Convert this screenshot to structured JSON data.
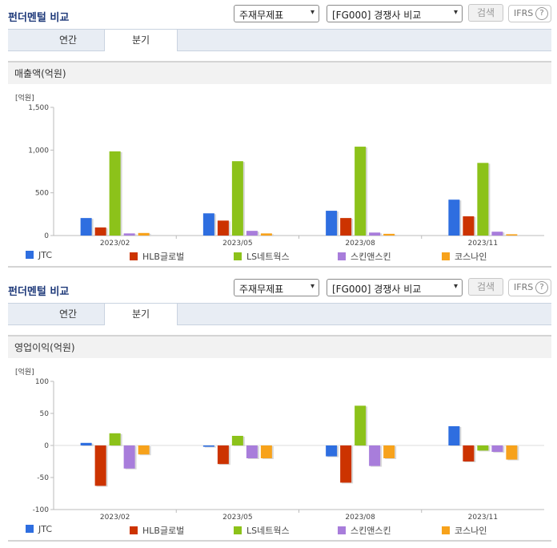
{
  "panels": [
    {
      "title": "펀더멘털 비교",
      "select_type": "주재무제표",
      "select_group": "[FG000] 경쟁사 비교",
      "search_label": "검색",
      "ifrs_label": "IFRS",
      "ifrs_help": "?",
      "tabs": [
        "연간",
        "분기"
      ],
      "active_tab": 1,
      "chart_title": "매출액(억원)",
      "unit_label": "[억원]"
    },
    {
      "title": "펀더멘털 비교",
      "select_type": "주재무제표",
      "select_group": "[FG000] 경쟁사 비교",
      "search_label": "검색",
      "ifrs_label": "IFRS",
      "ifrs_help": "?",
      "tabs": [
        "연간",
        "분기"
      ],
      "active_tab": 1,
      "chart_title": "영업이익(억원)",
      "unit_label": "[억원]"
    }
  ],
  "colors": {
    "JTC": "#2e6ee0",
    "HLB글로벌": "#cc3300",
    "LS네트웍스": "#8cc21a",
    "스킨앤스킨": "#a87ddb",
    "코스나인": "#f7a21b"
  },
  "chart_data": [
    {
      "type": "bar",
      "title": "매출액(억원)",
      "ylabel": "[억원]",
      "categories": [
        "2023/02",
        "2023/05",
        "2023/08",
        "2023/11"
      ],
      "ylim": [
        0,
        1500
      ],
      "yticks": [
        0,
        500,
        1000,
        1500
      ],
      "ytick_labels": [
        "0",
        "500",
        "1,000",
        "1,500"
      ],
      "series": [
        {
          "name": "JTC",
          "values": [
            205,
            260,
            290,
            420
          ]
        },
        {
          "name": "HLB글로벌",
          "values": [
            95,
            175,
            205,
            225
          ]
        },
        {
          "name": "LS네트웍스",
          "values": [
            985,
            870,
            1040,
            850
          ]
        },
        {
          "name": "스킨앤스킨",
          "values": [
            25,
            55,
            35,
            45
          ]
        },
        {
          "name": "코스나인",
          "values": [
            30,
            25,
            20,
            15
          ]
        }
      ]
    },
    {
      "type": "bar",
      "title": "영업이익(억원)",
      "ylabel": "[억원]",
      "categories": [
        "2023/02",
        "2023/05",
        "2023/08",
        "2023/11"
      ],
      "ylim": [
        -100,
        100
      ],
      "yticks": [
        -100,
        -50,
        0,
        50,
        100
      ],
      "ytick_labels": [
        "-100",
        "-50",
        "0",
        "50",
        "100"
      ],
      "series": [
        {
          "name": "JTC",
          "values": [
            4,
            -2,
            -17,
            30
          ]
        },
        {
          "name": "HLB글로벌",
          "values": [
            -63,
            -29,
            -58,
            -25
          ]
        },
        {
          "name": "LS네트웍스",
          "values": [
            19,
            15,
            62,
            -8
          ]
        },
        {
          "name": "스킨앤스킨",
          "values": [
            -36,
            -20,
            -32,
            -10
          ]
        },
        {
          "name": "코스나인",
          "values": [
            -14,
            -20,
            -20,
            -22
          ]
        }
      ]
    }
  ]
}
